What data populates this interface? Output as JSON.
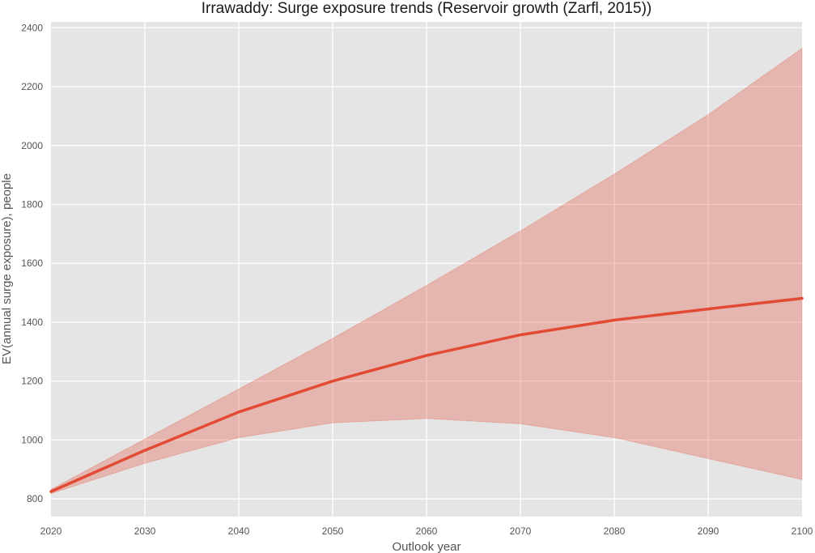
{
  "chart_data": {
    "type": "line",
    "title": "Irrawaddy: Surge exposure trends (Reservoir growth (Zarfl, 2015))",
    "xlabel": "Outlook year",
    "ylabel": "EV(annual surge exposure), people",
    "xlim": [
      2020,
      2100
    ],
    "ylim": [
      740,
      2420
    ],
    "xticks": [
      2020,
      2030,
      2040,
      2050,
      2060,
      2070,
      2080,
      2090,
      2100
    ],
    "yticks": [
      800,
      1000,
      1200,
      1400,
      1600,
      1800,
      2000,
      2200,
      2400
    ],
    "grid": true,
    "x": [
      2020,
      2030,
      2040,
      2050,
      2060,
      2070,
      2080,
      2090,
      2100
    ],
    "series": [
      {
        "values": [
          825,
          965,
          1095,
          1200,
          1287,
          1357,
          1407,
          1445,
          1481
        ]
      }
    ],
    "band": {
      "upper": [
        832,
        1003,
        1173,
        1345,
        1525,
        1710,
        1903,
        2105,
        2330
      ],
      "lower": [
        818,
        921,
        1008,
        1058,
        1073,
        1055,
        1008,
        937,
        866
      ]
    },
    "colors": {
      "line": "#e24a33",
      "band": "#e24a33",
      "plot_background": "#e5e5e5",
      "grid": "#ffffff"
    }
  }
}
